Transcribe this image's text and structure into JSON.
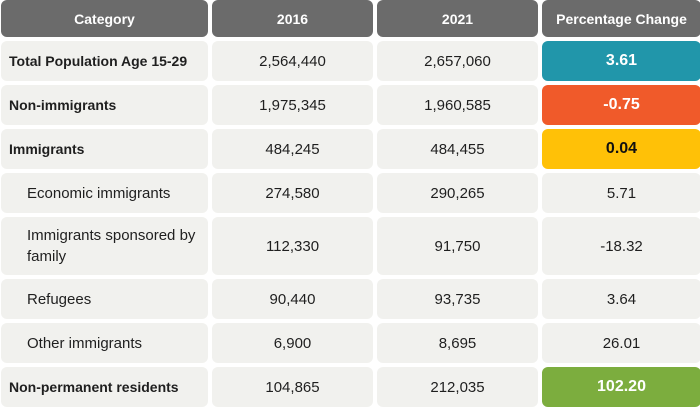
{
  "chart_data": {
    "type": "table",
    "columns": [
      "Category",
      "2016",
      "2021",
      "Percentage Change"
    ],
    "rows": [
      {
        "category": "Total Population Age 15-29",
        "y2016": "2,564,440",
        "y2021": "2,657,060",
        "change": "3.61",
        "highlight": "#2196aa",
        "text_color": "#ffffff",
        "level": "main"
      },
      {
        "category": "Non-immigrants",
        "y2016": "1,975,345",
        "y2021": "1,960,585",
        "change": "-0.75",
        "highlight": "#f05a2a",
        "text_color": "#ffffff",
        "level": "main"
      },
      {
        "category": "Immigrants",
        "y2016": "484,245",
        "y2021": "484,455",
        "change": "0.04",
        "highlight": "#ffc107",
        "text_color": "#111111",
        "level": "main"
      },
      {
        "category": "Economic immigrants",
        "y2016": "274,580",
        "y2021": "290,265",
        "change": "5.71",
        "highlight": null,
        "level": "sub"
      },
      {
        "category": "Immigrants sponsored by family",
        "y2016": "112,330",
        "y2021": "91,750",
        "change": "-18.32",
        "highlight": null,
        "level": "sub"
      },
      {
        "category": "Refugees",
        "y2016": "90,440",
        "y2021": "93,735",
        "change": "3.64",
        "highlight": null,
        "level": "sub"
      },
      {
        "category": "Other immigrants",
        "y2016": "6,900",
        "y2021": "8,695",
        "change": "26.01",
        "highlight": null,
        "level": "sub"
      },
      {
        "category": "Non-permanent residents",
        "y2016": "104,865",
        "y2021": "212,035",
        "change": "102.20",
        "highlight": "#7cad3e",
        "text_color": "#ffffff",
        "level": "main"
      }
    ]
  },
  "colors": {
    "header_bg": "#6b6b6b",
    "cell_bg": "#f1f1ee"
  }
}
